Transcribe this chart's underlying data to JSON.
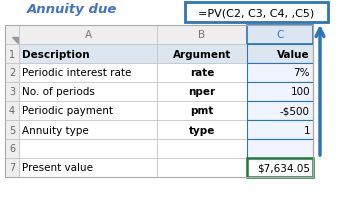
{
  "title": "Annuity due",
  "formula_bar": "=PV(C2, C3, C4, ,C5)",
  "col_headers": [
    "A",
    "B",
    "C"
  ],
  "rows": [
    [
      "Description",
      "Argument",
      "Value"
    ],
    [
      "Periodic interest rate",
      "rate",
      "7%"
    ],
    [
      "No. of periods",
      "nper",
      "100"
    ],
    [
      "Periodic payment",
      "pmt",
      "-$500"
    ],
    [
      "Annuity type",
      "type",
      "1"
    ],
    [
      "",
      "",
      ""
    ],
    [
      "Present value",
      "",
      "$7,634.05"
    ]
  ],
  "header_bg": "#dce6f1",
  "row_num_bg": "#eeeeee",
  "selected_col_bg": "#dce6f1",
  "formula_bg": "#ffffff",
  "formula_border": "#2e75b6",
  "result_border": "#1f7a3a",
  "arrow_color": "#2e75b6",
  "title_color": "#4472c4",
  "grid_color": "#c0c0c0",
  "white": "#ffffff",
  "col_c_bg": "#f0f4ff"
}
